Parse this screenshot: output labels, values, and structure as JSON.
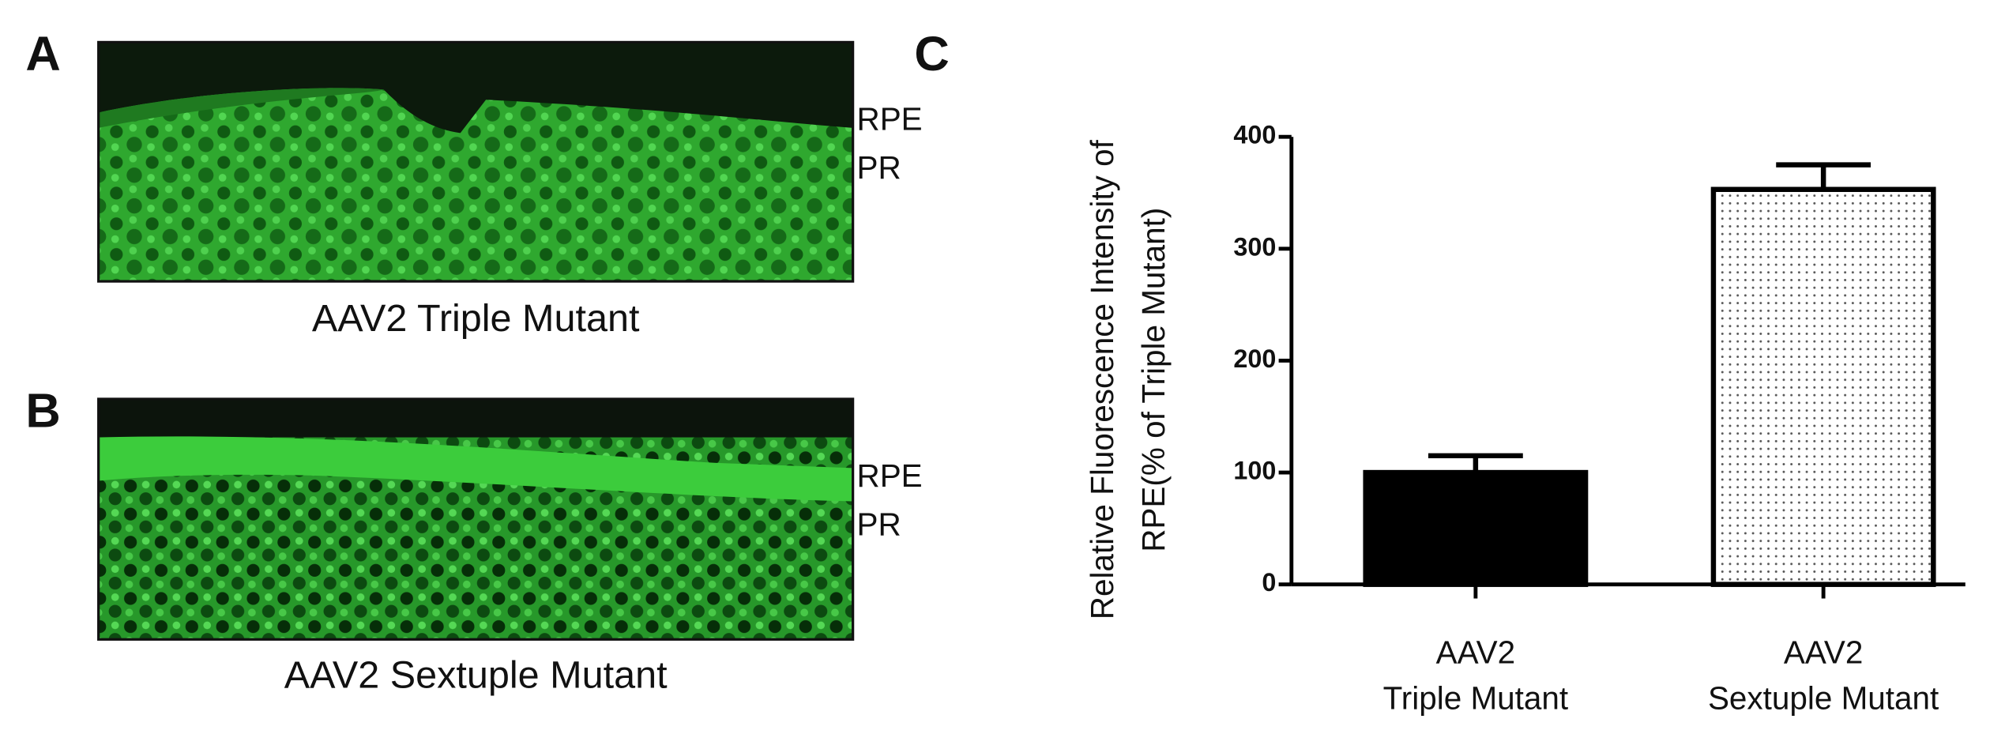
{
  "panels": [
    {
      "letter": "A",
      "caption": "AAV2 Triple Mutant",
      "layers": [
        "RPE",
        "PR"
      ]
    },
    {
      "letter": "B",
      "caption": "AAV2 Sextuple Mutant",
      "layers": [
        "RPE",
        "PR"
      ]
    }
  ],
  "chart_data": {
    "type": "bar",
    "letter": "C",
    "ylabel": [
      "Relative Fluorescence Intensity of",
      "RPE(% of Triple Mutant)"
    ],
    "categories": [
      [
        "AAV2",
        "Triple Mutant"
      ],
      [
        "AAV2",
        "Sextuple Mutant"
      ]
    ],
    "values": [
      100,
      353
    ],
    "errors": [
      15,
      22
    ],
    "colors": [
      "#000000",
      "#ffffff"
    ],
    "styles": [
      "solid",
      "dotted"
    ],
    "ylim": [
      0,
      400
    ],
    "yticks": [
      0,
      100,
      200,
      300,
      400
    ],
    "grid": false
  }
}
